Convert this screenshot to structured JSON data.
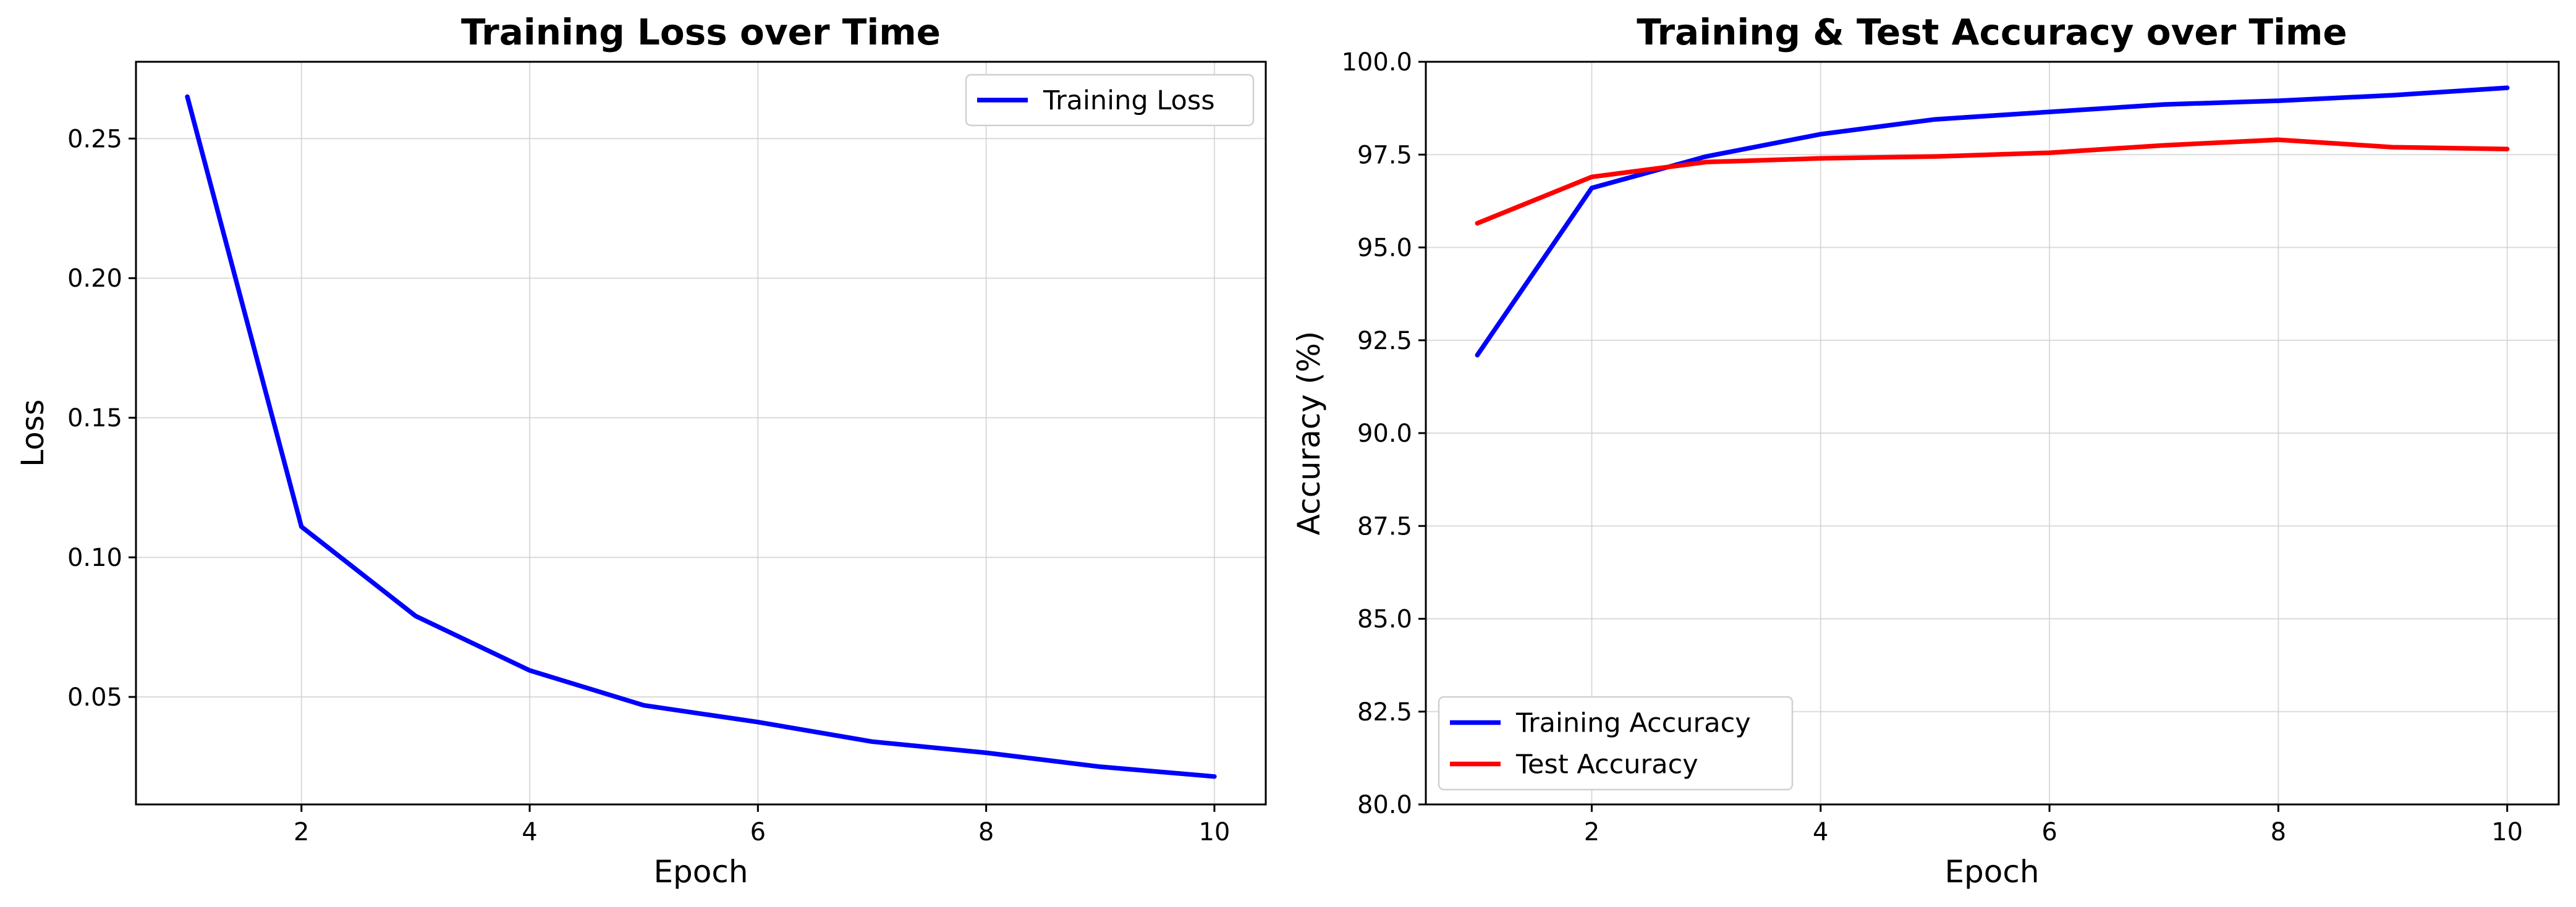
{
  "chart_data": [
    {
      "type": "line",
      "title": "Training Loss over Time",
      "xlabel": "Epoch",
      "ylabel": "Loss",
      "x": [
        1,
        2,
        3,
        4,
        5,
        6,
        7,
        8,
        9,
        10
      ],
      "xlim": [
        0.55,
        10.45
      ],
      "ylim": [
        0.0115,
        0.2775
      ],
      "xticks": [
        2,
        4,
        6,
        8,
        10
      ],
      "xtick_labels": [
        "2",
        "4",
        "6",
        "8",
        "10"
      ],
      "yticks": [
        0.05,
        0.1,
        0.15,
        0.2,
        0.25
      ],
      "ytick_labels": [
        "0.05",
        "0.10",
        "0.15",
        "0.20",
        "0.25"
      ],
      "grid": true,
      "legend": "upper right",
      "series": [
        {
          "name": "Training Loss",
          "color": "#0000ff",
          "values": [
            0.265,
            0.111,
            0.079,
            0.0595,
            0.047,
            0.041,
            0.034,
            0.03,
            0.025,
            0.0215
          ]
        }
      ]
    },
    {
      "type": "line",
      "title": "Training & Test Accuracy over Time",
      "xlabel": "Epoch",
      "ylabel": "Accuracy (%)",
      "x": [
        1,
        2,
        3,
        4,
        5,
        6,
        7,
        8,
        9,
        10
      ],
      "xlim": [
        0.55,
        10.45
      ],
      "ylim": [
        80.0,
        100.0
      ],
      "xticks": [
        2,
        4,
        6,
        8,
        10
      ],
      "xtick_labels": [
        "2",
        "4",
        "6",
        "8",
        "10"
      ],
      "yticks": [
        80.0,
        82.5,
        85.0,
        87.5,
        90.0,
        92.5,
        95.0,
        97.5,
        100.0
      ],
      "ytick_labels": [
        "80.0",
        "82.5",
        "85.0",
        "87.5",
        "90.0",
        "92.5",
        "95.0",
        "97.5",
        "100.0"
      ],
      "grid": true,
      "legend": "lower left",
      "series": [
        {
          "name": "Training Accuracy",
          "color": "#0000ff",
          "values": [
            92.1,
            96.6,
            97.45,
            98.05,
            98.45,
            98.65,
            98.85,
            98.95,
            99.1,
            99.3
          ]
        },
        {
          "name": "Test Accuracy",
          "color": "#ff0000",
          "values": [
            95.65,
            96.9,
            97.3,
            97.4,
            97.45,
            97.55,
            97.75,
            97.9,
            97.7,
            97.65
          ]
        }
      ]
    }
  ]
}
